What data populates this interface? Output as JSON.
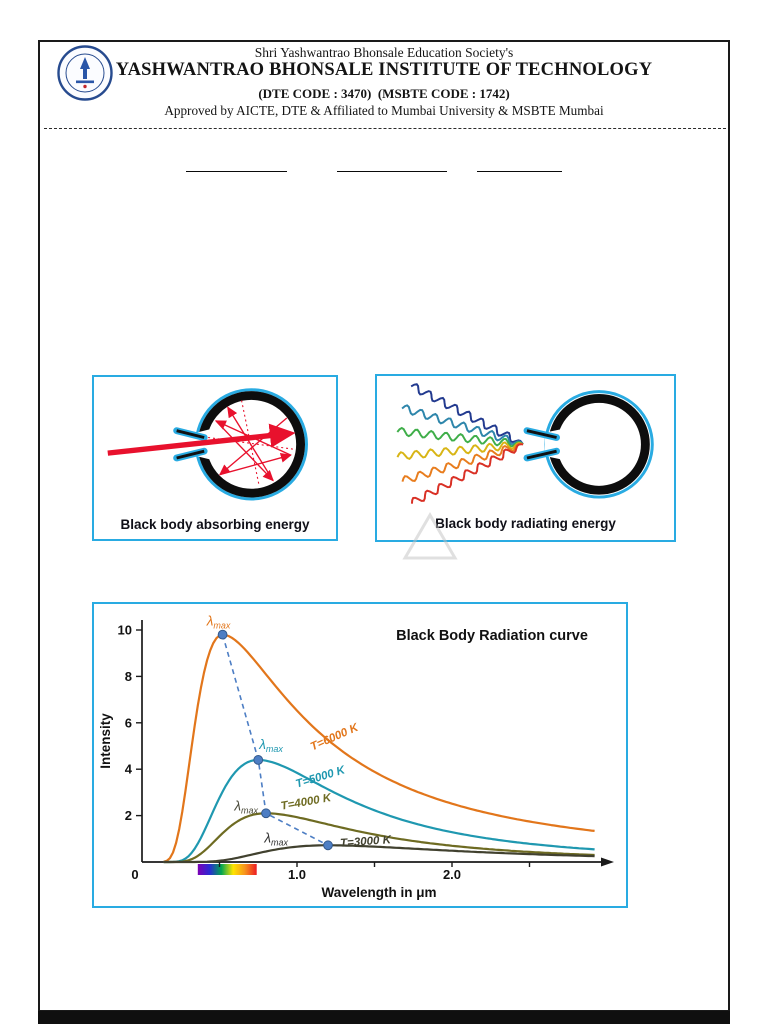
{
  "header": {
    "society": "Shri Yashwantrao Bhonsale Education Society's",
    "institute": "YASHWANTRAO BHONSALE INSTITUTE OF TECHNOLOGY",
    "codes": "(DTE CODE : 3470)  (MSBTE CODE : 1742)",
    "affiliation": "Approved by AICTE, DTE & Affiliated to Mumbai University & MSBTE Mumbai"
  },
  "figures": {
    "absorbing": {
      "caption": "Black body absorbing energy",
      "border_color": "#29abe2",
      "ray_color": "#e8112d"
    },
    "radiating": {
      "caption": "Black body radiating energy",
      "border_color": "#29abe2",
      "wave_colors": [
        "#223a8f",
        "#2e86ab",
        "#3fae49",
        "#d8b515",
        "#e87d1e",
        "#d93025"
      ]
    }
  },
  "chart_data": {
    "type": "line",
    "title": "Black Body Radiation curve",
    "xlabel": "Wavelength in μm",
    "ylabel": "Intensity",
    "xlim": [
      0,
      3.0
    ],
    "ylim": [
      0,
      11
    ],
    "x_ticks": [
      0,
      1.0,
      2.0
    ],
    "y_ticks": [
      0,
      2,
      4,
      6,
      8,
      10
    ],
    "grid": false,
    "peak_label_lambda": "λ",
    "peak_label_sub": "max",
    "peak_marker_color": "#4d7ec4",
    "peak_line_style": "dashed",
    "spectrum_band": {
      "from": 0.36,
      "to": 0.74,
      "colors": [
        "#7d00b5",
        "#2a2ad4",
        "#00a651",
        "#ffe400",
        "#f7941d",
        "#ed1c24"
      ]
    },
    "series": [
      {
        "name": "T=6000 K",
        "color": "#e2761b",
        "label_color": "#e2761b",
        "peak_x": 0.52,
        "peak_y": 9.8
      },
      {
        "name": "T=5000 K",
        "color": "#1f98b0",
        "label_color": "#1f98b0",
        "peak_x": 0.75,
        "peak_y": 4.4
      },
      {
        "name": "T=4000 K",
        "color": "#6e6b22",
        "label_color": "#4a4a3a",
        "peak_x": 0.8,
        "peak_y": 2.1
      },
      {
        "name": "T=3000 K",
        "color": "#41412f",
        "label_color": "#333333",
        "peak_x": 1.2,
        "peak_y": 0.72
      }
    ]
  }
}
